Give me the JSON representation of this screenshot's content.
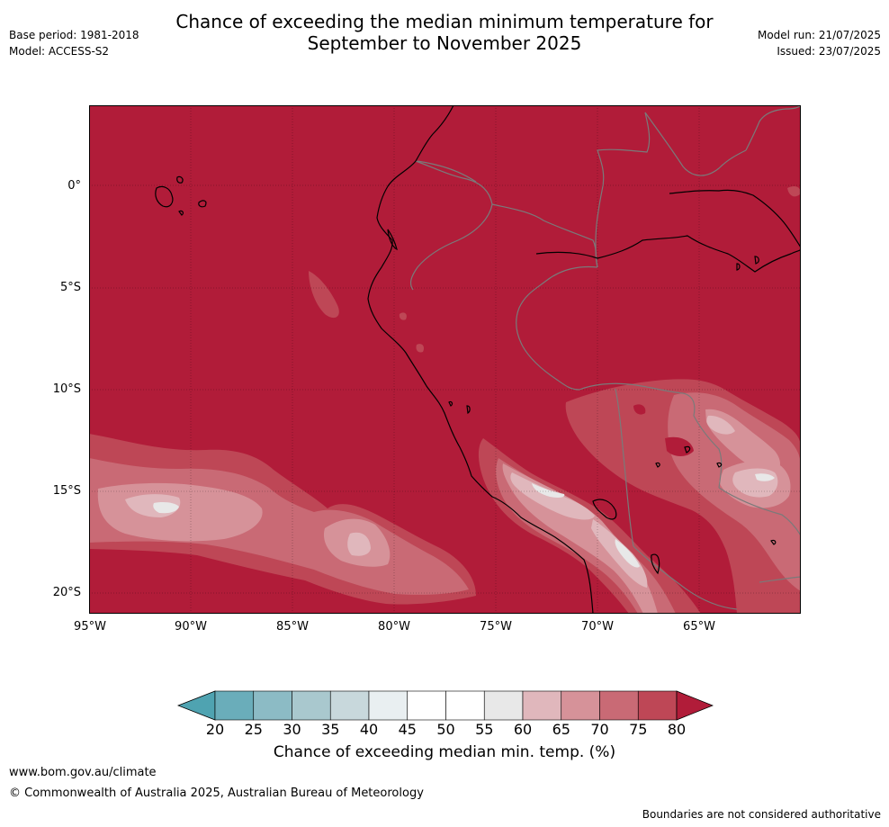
{
  "title": {
    "line1": "Chance of exceeding the median minimum temperature for",
    "line2": "September to November 2025"
  },
  "meta": {
    "base_period": "Base period: 1981-2018",
    "model": "Model: ACCESS-S2",
    "model_run": "Model run: 21/07/2025",
    "issued": "Issued: 23/07/2025"
  },
  "map": {
    "latitude_labels": [
      "0°",
      "5°S",
      "10°S",
      "15°S",
      "20°S"
    ],
    "longitude_labels": [
      "95°W",
      "90°W",
      "85°W",
      "80°W",
      "75°W",
      "70°W",
      "65°W"
    ]
  },
  "colorbar": {
    "label": "Chance of exceeding median min. temp. (%)",
    "ticks": [
      "20",
      "25",
      "30",
      "35",
      "40",
      "45",
      "50",
      "55",
      "60",
      "65",
      "70",
      "75",
      "80"
    ],
    "colors": {
      "below_20": "#4fa3b1",
      "20_25": "#6aadba",
      "25_30": "#8cbbc5",
      "30_35": "#a9c8ce",
      "35_40": "#c8d8dc",
      "40_45": "#e9eff1",
      "45_50": "#ffffff",
      "50_55": "#ffffff",
      "55_60": "#e8e8e8",
      "60_65": "#e0b7bc",
      "65_70": "#d69299",
      "70_75": "#c96a75",
      "75_80": "#be4756",
      "above_80": "#b11c39"
    }
  },
  "footer": {
    "url": "www.bom.gov.au/climate",
    "copyright": "© Commonwealth of Australia 2025, Australian Bureau of Meteorology",
    "note": "Boundaries are not considered authoritative"
  }
}
